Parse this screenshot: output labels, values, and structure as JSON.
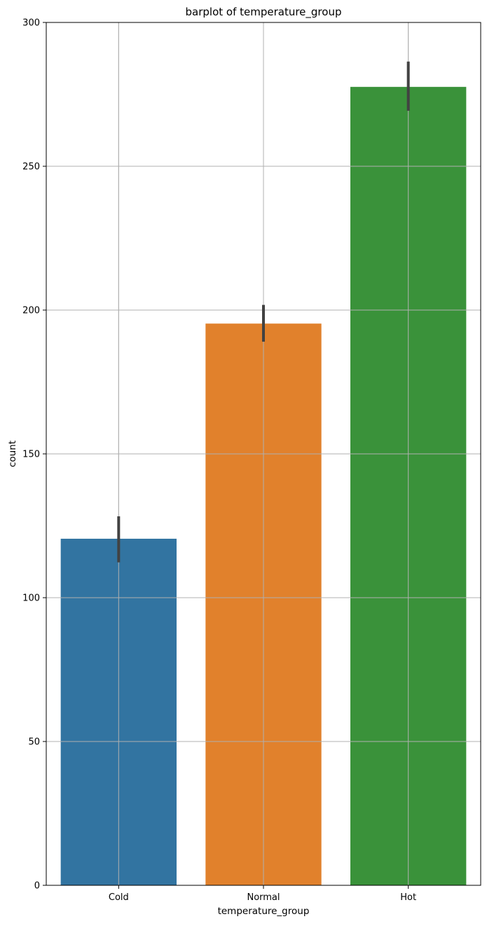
{
  "chart_data": {
    "type": "bar",
    "title": "barplot of temperature_group",
    "xlabel": "temperature_group",
    "ylabel": "count",
    "categories": [
      "Cold",
      "Normal",
      "Hot"
    ],
    "values": [
      120.5,
      195.3,
      277.6
    ],
    "error_bars": [
      {
        "low": 112.3,
        "high": 128.3
      },
      {
        "low": 189.0,
        "high": 201.8
      },
      {
        "low": 269.3,
        "high": 286.4
      }
    ],
    "colors": [
      "#3274a1",
      "#e1812c",
      "#3a923a"
    ],
    "error_bar_color": "#424242",
    "ylim": [
      0,
      300
    ],
    "yticks": [
      0,
      50,
      100,
      150,
      200,
      250,
      300
    ],
    "ytick_labels": [
      "0",
      "50",
      "100",
      "150",
      "200",
      "250",
      "300"
    ],
    "grid": true,
    "grid_color": "#b0b0b0"
  }
}
